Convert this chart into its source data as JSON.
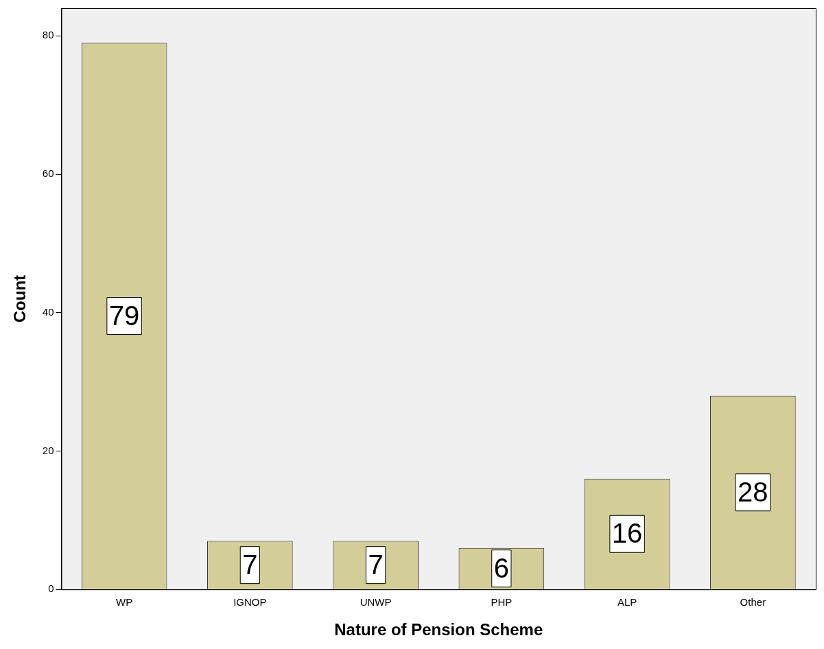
{
  "chart_data": {
    "type": "bar",
    "xlabel": "Nature of Pension Scheme",
    "ylabel": "Count",
    "categories": [
      "WP",
      "IGNOP",
      "UNWP",
      "PHP",
      "ALP",
      "Other"
    ],
    "values": [
      79,
      7,
      7,
      6,
      16,
      28
    ],
    "color": "#d3ce97",
    "ylim": [
      0,
      84
    ],
    "yticks": [
      0,
      20,
      40,
      60,
      80
    ],
    "grid": false,
    "legend": false,
    "data_labels": true
  }
}
